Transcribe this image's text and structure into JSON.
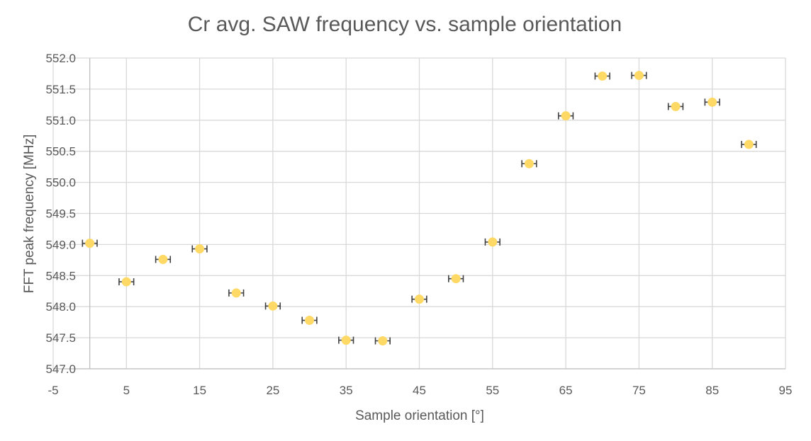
{
  "chart_data": {
    "type": "scatter",
    "title": "Cr avg. SAW frequency vs. sample orientation",
    "xlabel": "Sample orientation [°]",
    "ylabel": "FFT peak frequency [MHz]",
    "xlim": [
      -5,
      95
    ],
    "ylim": [
      547.0,
      552.0
    ],
    "x_ticks": [
      "-5",
      "5",
      "15",
      "25",
      "35",
      "45",
      "55",
      "65",
      "75",
      "85",
      "95"
    ],
    "y_ticks": [
      "547.0",
      "547.5",
      "548.0",
      "548.5",
      "549.0",
      "549.5",
      "550.0",
      "550.5",
      "551.0",
      "551.5",
      "552.0"
    ],
    "x_error": 1,
    "grid": true,
    "legend": "none",
    "marker_color": "#ffd966",
    "error_bar_color": "#404040",
    "series": [
      {
        "x": [
          0,
          5,
          10,
          15,
          20,
          25,
          30,
          35,
          40,
          45,
          50,
          55,
          60,
          65,
          70,
          75,
          80,
          85,
          90
        ],
        "y": [
          549.02,
          548.4,
          548.76,
          548.93,
          548.22,
          548.01,
          547.78,
          547.46,
          547.45,
          548.12,
          548.45,
          549.04,
          550.3,
          551.07,
          551.71,
          551.72,
          551.22,
          551.29,
          550.61
        ]
      }
    ]
  }
}
